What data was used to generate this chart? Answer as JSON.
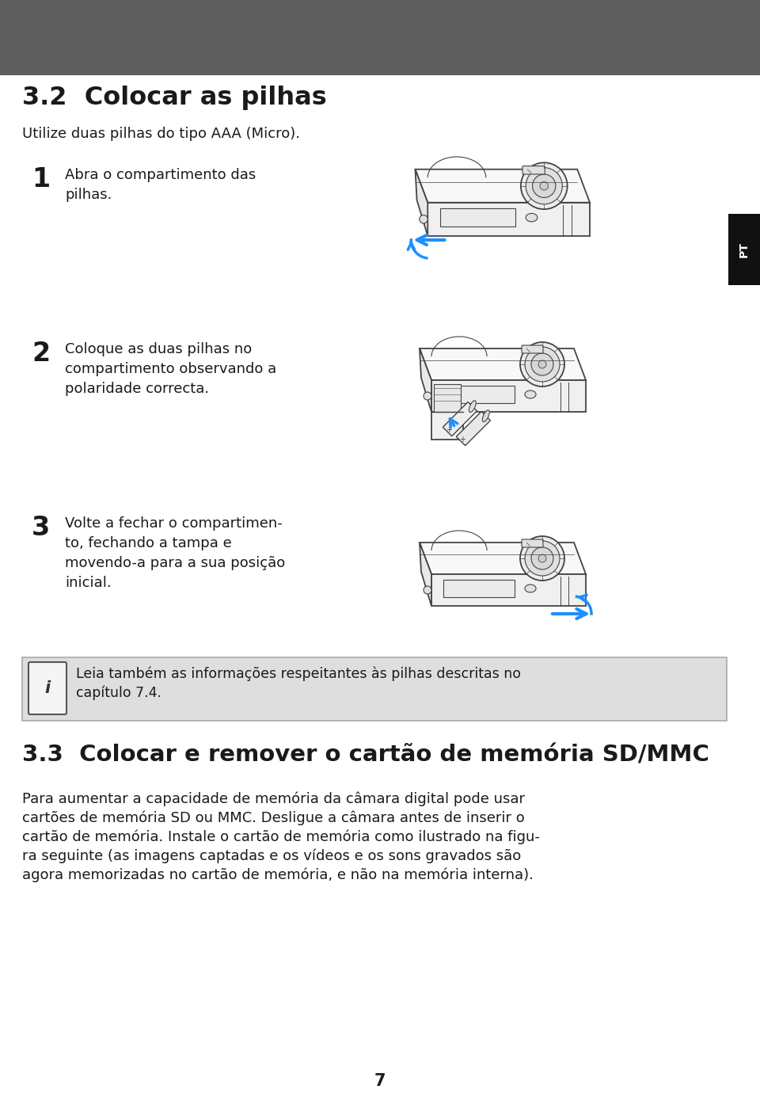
{
  "page_background": "#ffffff",
  "header_bar_color": "#5f5f5f",
  "header_bar_height": 95,
  "pt_tab_color": "#111111",
  "pt_tab_text": "PT",
  "pt_tab_text_color": "#ffffff",
  "section_title_32": "3.2  Colocar as pilhas",
  "section_subtitle_32": "Utilize duas pilhas do tipo AAA (Micro).",
  "step1_num": "1",
  "step1_text": "Abra o compartimento das\npilhas.",
  "step2_num": "2",
  "step2_text": "Coloque as duas pilhas no\ncompartimento observando a\npolaridade correcta.",
  "step3_num": "3",
  "step3_text": "Volte a fechar o compartimen-\nto, fechando a tampa e\nmovendo-a para a sua posição\ninicial.",
  "info_box_bg": "#dedede",
  "info_text_line1": "Leia também as informações respeitantes às pilhas descritas no",
  "info_text_line2": "capítulo 7.4.",
  "section_title_33": "3.3  Colocar e remover o cartão de memória SD/MMC",
  "body_text_33_lines": [
    "Para aumentar a capacidade de memória da câmara digital pode usar",
    "cartões de memória SD ou MMC. Desligue a câmara antes de inserir o",
    "cartão de memória. Instale o cartão de memória como ilustrado na figu-",
    "ra seguinte (as imagens captadas e os vídeos e os sons gravados são",
    "agora memorizadas no cartão de memória, e não na memória interna)."
  ],
  "page_number": "7",
  "font_color": "#1a1a1a",
  "camera_line_color": "#444444",
  "camera_fill": "#f8f8f8",
  "arrow_color": "#1e90ff"
}
